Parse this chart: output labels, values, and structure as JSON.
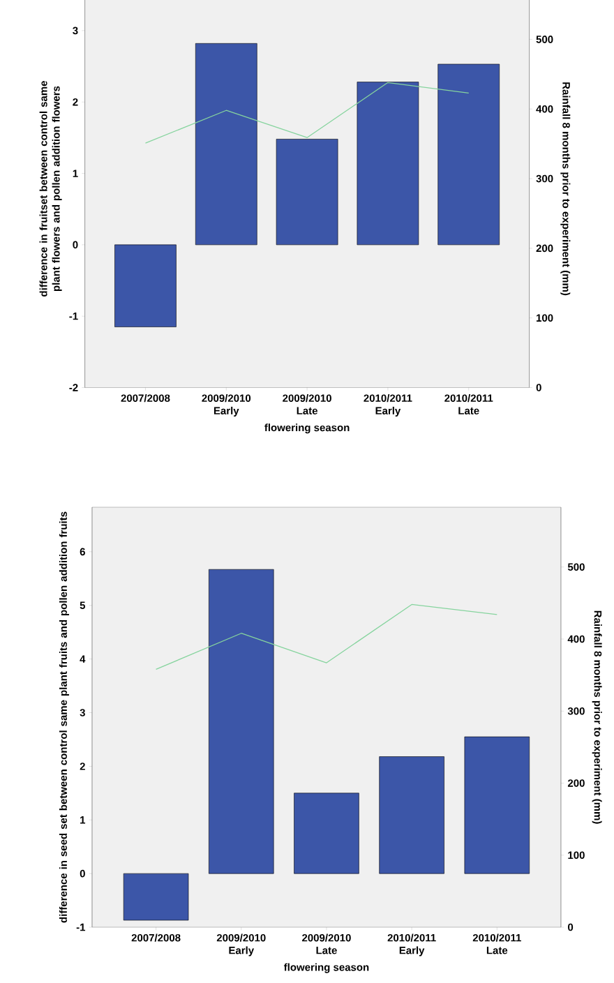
{
  "chart_data": [
    {
      "type": "bar",
      "categories": [
        "2007/2008",
        "2009/2010 Early",
        "2009/2010 Late",
        "2010/2011 Early",
        "2010/2011 Late"
      ],
      "series": [
        {
          "type": "bar",
          "color": "#3c56a8",
          "values": [
            -1.15,
            2.82,
            1.48,
            2.28,
            2.53
          ]
        },
        {
          "type": "line",
          "axis": "y2",
          "color": "#86d49e",
          "values": [
            351,
            398,
            359,
            438,
            423
          ]
        }
      ],
      "xlabel": "flowering season",
      "ylabel": "difference in  fruitset between control same plant flowers and pollen addition  flowers",
      "y2label": "Rainfall 8 months prior to experiment (mm)",
      "ylim": [
        -2,
        3.57
      ],
      "yticks": [
        -2,
        -1,
        0,
        1,
        2,
        3
      ],
      "y2lim": [
        0,
        571
      ],
      "y2ticks": [
        0,
        100,
        200,
        300,
        400,
        500
      ]
    },
    {
      "type": "bar",
      "categories": [
        "2007/2008",
        "2009/2010 Early",
        "2009/2010 Late",
        "2010/2011 Early",
        "2010/2011 Late"
      ],
      "series": [
        {
          "type": "bar",
          "color": "#3c56a8",
          "values": [
            -0.87,
            5.67,
            1.5,
            2.18,
            2.55
          ]
        },
        {
          "type": "line",
          "axis": "y2",
          "color": "#86d49e",
          "values": [
            358,
            408,
            367,
            448,
            434
          ]
        }
      ],
      "xlabel": "flowering season",
      "ylabel": "difference in seed set between control same plant fruits and pollen addition fruits",
      "y2label": "Rainfall 8 months prior to experiment (mm)",
      "ylim": [
        -1,
        6.83
      ],
      "yticks": [
        -1,
        0,
        1,
        2,
        3,
        4,
        5,
        6
      ],
      "y2lim": [
        0,
        583
      ],
      "y2ticks": [
        0,
        100,
        200,
        300,
        400,
        500
      ]
    }
  ]
}
